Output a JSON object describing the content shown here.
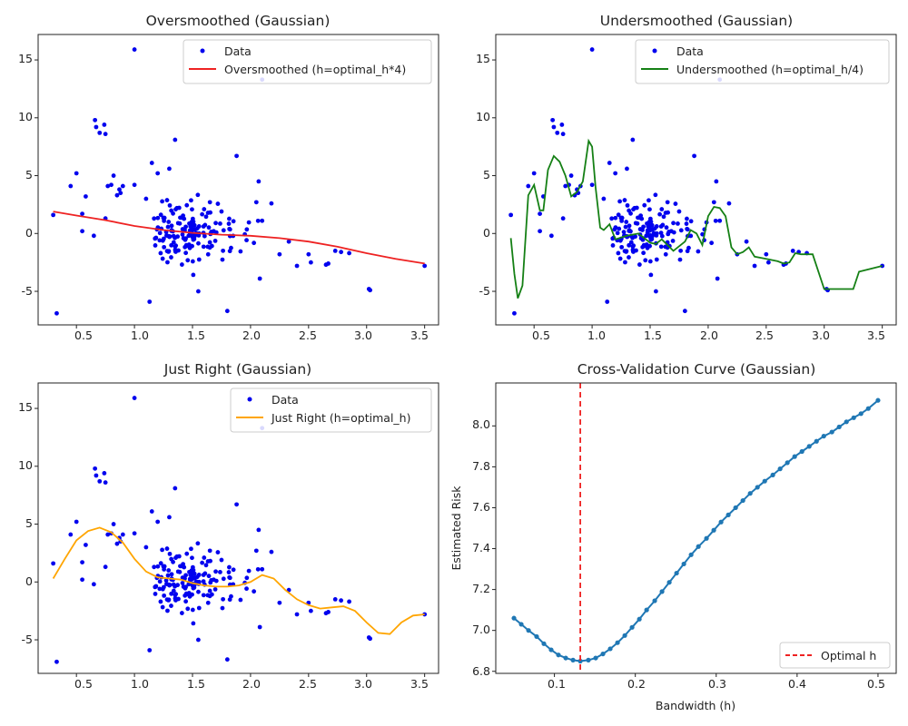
{
  "colors": {
    "scatter": "#0000ee",
    "oversmoothed": "#ee2222",
    "undersmoothed": "#158015",
    "just_right": "#ffa500",
    "cv_line": "#1f77b4",
    "optimal_line": "#ee2222"
  },
  "chart_data": [
    {
      "type": "scatter",
      "title": "Oversmoothed (Gaussian)",
      "xlabel": "",
      "ylabel": "",
      "xlim": [
        0.17,
        3.62
      ],
      "ylim": [
        -7.9,
        17.2
      ],
      "xticks": [
        "0.5",
        "1.0",
        "1.5",
        "2.0",
        "2.5",
        "3.0",
        "3.5"
      ],
      "yticks": [
        "-5",
        "0",
        "5",
        "10",
        "15"
      ],
      "legend_position": "top-right",
      "legend": [
        "Data",
        "Oversmoothed (h=optimal_h*4)"
      ],
      "series": [
        {
          "name": "Oversmoothed (h=optimal_h*4)",
          "color_key": "oversmoothed",
          "x": [
            0.3,
            0.5,
            0.75,
            1.0,
            1.25,
            1.5,
            1.75,
            2.0,
            2.25,
            2.5,
            2.75,
            3.0,
            3.25,
            3.5
          ],
          "y": [
            1.9,
            1.55,
            1.15,
            0.65,
            0.3,
            0.05,
            -0.1,
            -0.2,
            -0.4,
            -0.7,
            -1.15,
            -1.7,
            -2.2,
            -2.6
          ]
        }
      ]
    },
    {
      "type": "scatter",
      "title": "Undersmoothed (Gaussian)",
      "xlabel": "",
      "ylabel": "",
      "xlim": [
        0.17,
        3.62
      ],
      "ylim": [
        -7.9,
        17.2
      ],
      "xticks": [
        "0.5",
        "1.0",
        "1.5",
        "2.0",
        "2.5",
        "3.0",
        "3.5"
      ],
      "yticks": [
        "-5",
        "0",
        "5",
        "10",
        "15"
      ],
      "legend_position": "top-right",
      "legend": [
        "Data",
        "Undersmoothed (h=optimal_h/4)"
      ],
      "series": [
        {
          "name": "Undersmoothed (h=optimal_h/4)",
          "color_key": "undersmoothed",
          "x": [
            0.3,
            0.33,
            0.36,
            0.4,
            0.45,
            0.5,
            0.55,
            0.58,
            0.62,
            0.67,
            0.72,
            0.77,
            0.82,
            0.87,
            0.92,
            0.97,
            1.0,
            1.03,
            1.07,
            1.1,
            1.15,
            1.2,
            1.3,
            1.4,
            1.5,
            1.55,
            1.6,
            1.7,
            1.8,
            1.85,
            1.9,
            1.95,
            2.0,
            2.05,
            2.1,
            2.15,
            2.2,
            2.25,
            2.3,
            2.35,
            2.4,
            2.5,
            2.6,
            2.65,
            2.7,
            2.75,
            2.8,
            2.9,
            3.0,
            3.1,
            3.25,
            3.3,
            3.5
          ],
          "y": [
            -0.4,
            -3.5,
            -5.6,
            -4.5,
            3.3,
            4.2,
            2.0,
            2.0,
            5.5,
            6.7,
            6.2,
            5.0,
            3.2,
            3.6,
            4.5,
            8.0,
            7.5,
            4.0,
            0.5,
            0.3,
            0.8,
            -0.5,
            -0.2,
            0.0,
            -0.8,
            -0.9,
            -0.5,
            -1.5,
            -0.7,
            0.3,
            0.0,
            -1.0,
            1.5,
            2.3,
            2.2,
            1.5,
            -1.2,
            -1.8,
            -1.6,
            -1.2,
            -2.0,
            -2.2,
            -2.4,
            -2.6,
            -2.5,
            -1.7,
            -1.8,
            -1.8,
            -4.8,
            -4.8,
            -4.8,
            -3.3,
            -2.8
          ]
        }
      ]
    },
    {
      "type": "scatter",
      "title": "Just Right (Gaussian)",
      "xlabel": "",
      "ylabel": "",
      "xlim": [
        0.17,
        3.62
      ],
      "ylim": [
        -7.9,
        17.2
      ],
      "xticks": [
        "0.5",
        "1.0",
        "1.5",
        "2.0",
        "2.5",
        "3.0",
        "3.5"
      ],
      "yticks": [
        "-5",
        "0",
        "5",
        "10",
        "15"
      ],
      "legend_position": "top-right",
      "legend": [
        "Data",
        "Just Right (h=optimal_h)"
      ],
      "series": [
        {
          "name": "Just Right (h=optimal_h)",
          "color_key": "just_right",
          "x": [
            0.3,
            0.4,
            0.5,
            0.6,
            0.7,
            0.8,
            0.9,
            1.0,
            1.1,
            1.2,
            1.3,
            1.4,
            1.5,
            1.6,
            1.7,
            1.8,
            1.9,
            2.0,
            2.1,
            2.2,
            2.3,
            2.4,
            2.5,
            2.6,
            2.7,
            2.8,
            2.9,
            3.0,
            3.1,
            3.2,
            3.3,
            3.4,
            3.5
          ],
          "y": [
            0.3,
            2.0,
            3.6,
            4.4,
            4.7,
            4.3,
            3.4,
            2.0,
            0.9,
            0.4,
            0.3,
            0.2,
            -0.1,
            -0.3,
            -0.4,
            -0.4,
            -0.3,
            0.0,
            0.6,
            0.3,
            -0.7,
            -1.5,
            -2.0,
            -2.3,
            -2.2,
            -2.1,
            -2.5,
            -3.5,
            -4.4,
            -4.5,
            -3.5,
            -2.9,
            -2.8
          ]
        }
      ]
    },
    {
      "type": "line",
      "title": "Cross-Validation Curve (Gaussian)",
      "xlabel": "Bandwidth (h)",
      "ylabel": "Estimated Risk",
      "xlim": [
        0.0275,
        0.5225
      ],
      "ylim": [
        6.79,
        8.21
      ],
      "xticks": [
        "0.1",
        "0.2",
        "0.3",
        "0.4",
        "0.5"
      ],
      "yticks": [
        "6.8",
        "7.0",
        "7.2",
        "7.4",
        "7.6",
        "7.8",
        "8.0"
      ],
      "legend_position": "bottom-right",
      "legend": [
        "Optimal h"
      ],
      "optimal_h": 0.132,
      "series": [
        {
          "name": "",
          "color_key": "cv_line",
          "x": [
            0.05,
            0.059,
            0.068,
            0.078,
            0.087,
            0.096,
            0.105,
            0.114,
            0.123,
            0.132,
            0.142,
            0.151,
            0.16,
            0.169,
            0.178,
            0.187,
            0.196,
            0.205,
            0.214,
            0.224,
            0.233,
            0.242,
            0.251,
            0.26,
            0.269,
            0.278,
            0.288,
            0.297,
            0.306,
            0.315,
            0.324,
            0.333,
            0.342,
            0.351,
            0.36,
            0.37,
            0.379,
            0.388,
            0.397,
            0.406,
            0.415,
            0.424,
            0.433,
            0.443,
            0.452,
            0.461,
            0.47,
            0.479,
            0.488,
            0.5
          ],
          "y": [
            7.06,
            7.03,
            7.0,
            6.97,
            6.935,
            6.905,
            6.88,
            6.865,
            6.855,
            6.85,
            6.855,
            6.865,
            6.885,
            6.91,
            6.94,
            6.975,
            7.015,
            7.055,
            7.1,
            7.145,
            7.19,
            7.235,
            7.28,
            7.325,
            7.37,
            7.41,
            7.45,
            7.49,
            7.53,
            7.565,
            7.6,
            7.635,
            7.67,
            7.7,
            7.73,
            7.76,
            7.79,
            7.82,
            7.85,
            7.875,
            7.9,
            7.925,
            7.95,
            7.97,
            7.995,
            8.02,
            8.04,
            8.06,
            8.085,
            8.125
          ]
        }
      ]
    }
  ]
}
